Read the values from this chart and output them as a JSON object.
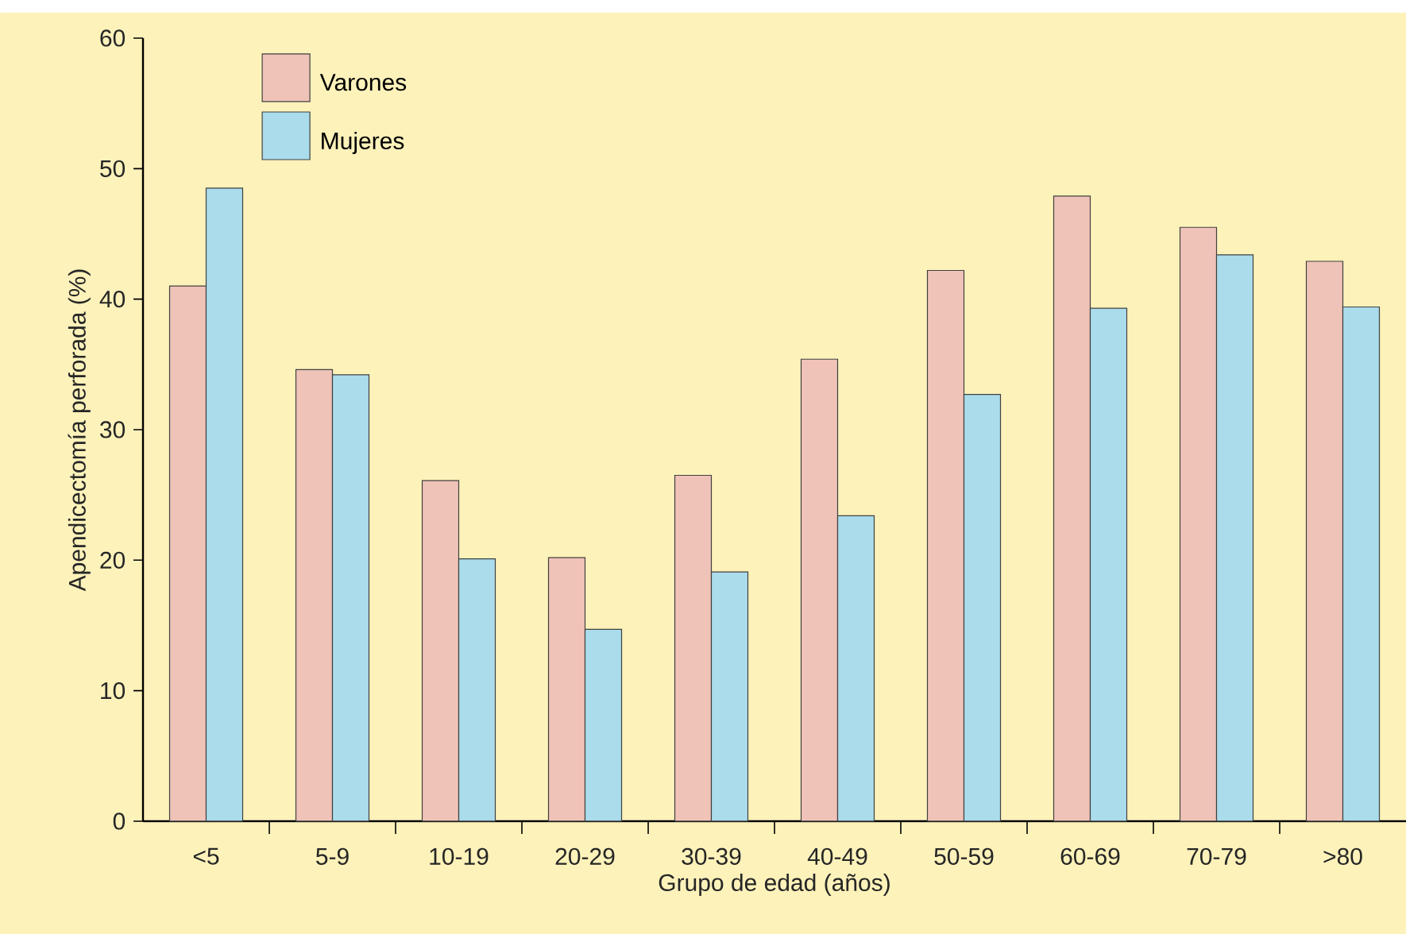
{
  "chart_data": {
    "type": "bar",
    "xlabel": "Grupo de edad (años)",
    "ylabel": "Apendicectomía perforada (%)",
    "categories": [
      "<5",
      "5-9",
      "10-19",
      "20-29",
      "30-39",
      "40-49",
      "50-59",
      "60-69",
      "70-79",
      ">80"
    ],
    "series": [
      {
        "name": "Varones",
        "color": "#f0c3b8",
        "values": [
          41.0,
          34.6,
          26.1,
          20.2,
          26.5,
          35.4,
          42.2,
          47.9,
          45.5,
          42.9
        ]
      },
      {
        "name": "Mujeres",
        "color": "#aadcec",
        "values": [
          48.5,
          34.2,
          20.1,
          14.7,
          19.1,
          23.4,
          32.7,
          39.3,
          43.4,
          39.4
        ]
      }
    ],
    "ylim": [
      0,
      60
    ],
    "yticks": [
      0,
      10,
      20,
      30,
      40,
      50,
      60
    ],
    "legend": "top left"
  }
}
